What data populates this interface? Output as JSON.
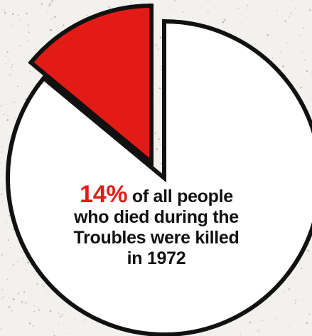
{
  "chart_data": {
    "type": "pie",
    "slices": [
      {
        "label": "1972",
        "value": 14,
        "color": "#e31b16",
        "exploded": true
      },
      {
        "label": "",
        "value": 86,
        "color": "#ffffff",
        "exploded": false
      }
    ]
  },
  "caption": {
    "highlight": "14%",
    "text_line1": " of all people",
    "text_line2": "who died during the",
    "text_line3": "Troubles were killed",
    "text_line4": "in 1972"
  },
  "colors": {
    "accent": "#e31b16",
    "outline": "#111111",
    "background": "#f2f1ee"
  }
}
